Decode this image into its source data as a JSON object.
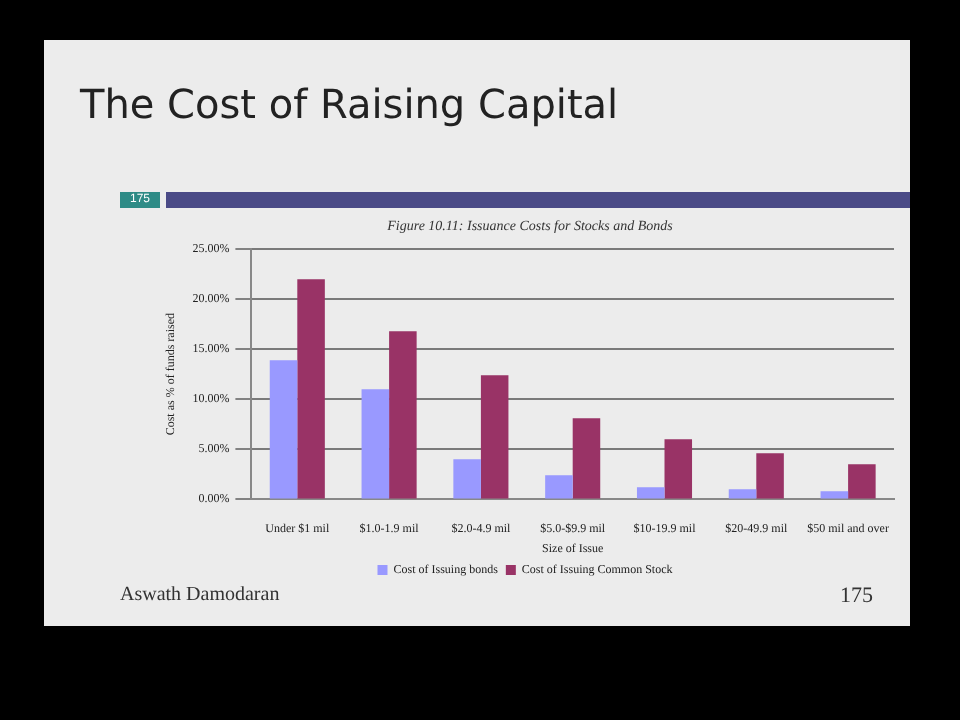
{
  "chart_data": {
    "type": "bar",
    "title": "The Cost of Raising Capital",
    "subtitle": "Figure 10.11: Issuance Costs for Stocks and Bonds",
    "xlabel": "Size of Issue",
    "ylabel": "Cost as % of funds raised",
    "categories": [
      "Under $1 mil",
      "$1.0-1.9 mil",
      "$2.0-4.9 mil",
      "$5.0-$9.9 mil",
      "$10-19.9 mil",
      "$20-49.9 mil",
      "$50 mil and over"
    ],
    "series": [
      {
        "name": "Cost of Issuing bonds",
        "color": "#9999ff",
        "values": [
          13.9,
          11.0,
          4.0,
          2.4,
          1.2,
          1.0,
          0.8
        ]
      },
      {
        "name": "Cost of Issuing Common Stock",
        "color": "#993366",
        "values": [
          22.0,
          16.8,
          12.4,
          8.1,
          6.0,
          4.6,
          3.5
        ]
      }
    ],
    "ylim": [
      0,
      25
    ],
    "yticks": [
      {
        "value": 0,
        "label": "0.00%"
      },
      {
        "value": 5,
        "label": "5.00%"
      },
      {
        "value": 10,
        "label": "10.00%"
      },
      {
        "value": 15,
        "label": "15.00%"
      },
      {
        "value": 20,
        "label": "20.00%"
      },
      {
        "value": 25,
        "label": "25.00%"
      }
    ],
    "grid": "y",
    "legend": "bottom",
    "annotations": [
      "175",
      "Aswath Damodaran",
      "175"
    ]
  }
}
